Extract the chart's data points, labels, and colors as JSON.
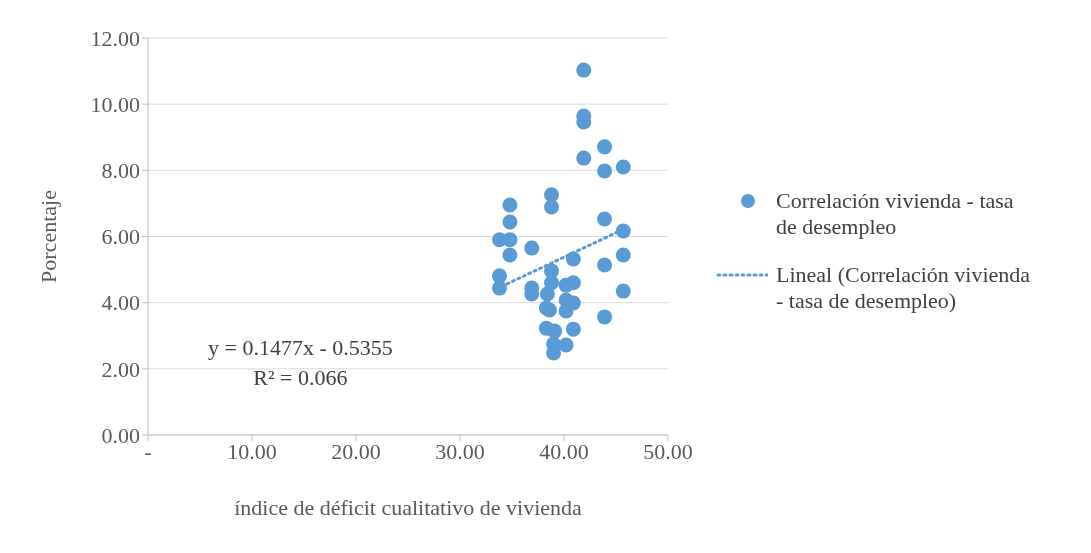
{
  "chart_data": {
    "type": "scatter",
    "xlabel": "índice de déficit cualitativo de vivienda",
    "ylabel": "Porcentaje",
    "xlim": [
      0,
      50
    ],
    "xticks": [
      {
        "value": 0,
        "label": "-"
      },
      {
        "value": 10,
        "label": "10.00"
      },
      {
        "value": 20,
        "label": "20.00"
      },
      {
        "value": 30,
        "label": "30.00"
      },
      {
        "value": 40,
        "label": "40.00"
      },
      {
        "value": 50,
        "label": "50.00"
      }
    ],
    "ylim": [
      0,
      12
    ],
    "yticks": [
      {
        "value": 0,
        "label": "0.00"
      },
      {
        "value": 2,
        "label": "2.00"
      },
      {
        "value": 4,
        "label": "4.00"
      },
      {
        "value": 6,
        "label": "6.00"
      },
      {
        "value": 8,
        "label": "8.00"
      },
      {
        "value": 10,
        "label": "10.00"
      },
      {
        "value": 12,
        "label": "12.00"
      }
    ],
    "grid": "y",
    "legend": "right",
    "marker": "circle",
    "series": [
      {
        "name": "Correlación vivienda - tasa de desempleo",
        "color": "#5b9bd5",
        "x": [
          33.8,
          34.8,
          34.8,
          36.9,
          33.8,
          33.8,
          36.9,
          36.9,
          38.8,
          38.8,
          38.4,
          40.9,
          40.2,
          40.9,
          40.2,
          40.9,
          38.3,
          38.6,
          40.2,
          43.9,
          45.7,
          45.7,
          43.9,
          38.3,
          39.1,
          40.9,
          40.2,
          39.0,
          39.0,
          41.9,
          41.9,
          41.9,
          43.9,
          41.9,
          43.9,
          45.7,
          34.8,
          34.8,
          38.8,
          38.8,
          43.9,
          45.7
        ],
        "values": [
          5.9,
          5.9,
          5.44,
          5.65,
          4.81,
          4.44,
          4.44,
          4.26,
          4.96,
          4.6,
          4.26,
          5.32,
          4.53,
          4.6,
          4.08,
          3.99,
          3.84,
          3.78,
          3.75,
          5.14,
          5.44,
          4.35,
          3.57,
          3.23,
          3.14,
          3.2,
          2.72,
          2.75,
          2.48,
          11.03,
          9.64,
          9.46,
          8.71,
          8.37,
          7.98,
          8.1,
          6.95,
          6.44,
          7.26,
          6.89,
          6.53,
          6.17
        ]
      },
      {
        "name": "Lineal (Correlación vivienda - tasa de desempleo)",
        "type": "line",
        "line_style": "dotted",
        "marker": "none",
        "color": "#5b9bd5",
        "x": [
          34,
          46
        ],
        "values": [
          4.49,
          6.26
        ]
      }
    ],
    "annotations": [
      "y = 0.1477x - 0.5355",
      "R² = 0.066"
    ]
  }
}
